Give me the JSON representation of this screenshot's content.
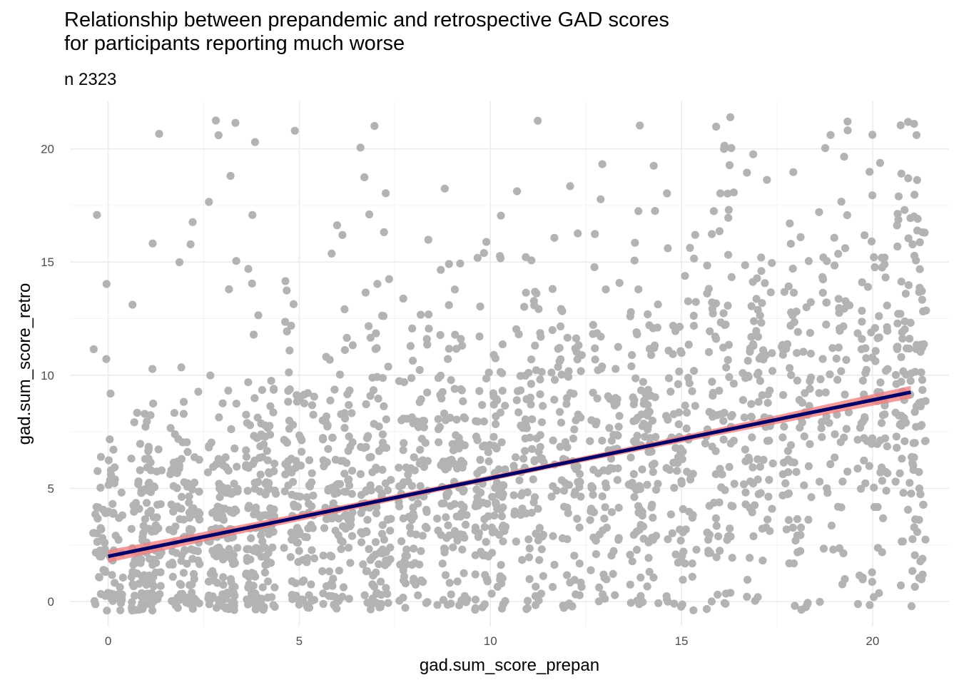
{
  "chart_data": {
    "type": "scatter",
    "title": "Relationship between prepandemic and retrospective GAD scores\nfor participants reporting much worse",
    "subtitle": "n 2323",
    "xlabel": "gad.sum_score_prepan",
    "ylabel": "gad.sum_score_retro",
    "xlim": [
      -1.0,
      22.0
    ],
    "ylim": [
      -1.1,
      22.1
    ],
    "x_ticks": [
      0,
      5,
      10,
      15,
      20
    ],
    "y_ticks": [
      0,
      5,
      10,
      15,
      20
    ],
    "grid": true,
    "legend": "none",
    "n": 2323,
    "jitter": 0.4,
    "point_color": "#B3B3B3",
    "fit_line": {
      "method": "linear",
      "x": [
        0,
        21
      ],
      "y": [
        2.0,
        9.25
      ],
      "color": "#000066",
      "ribbon_color": "#F08080",
      "ribbon_halfwidth_ends": 0.28,
      "ribbon_halfwidth_mid": 0.12
    },
    "points_summary": "Points cover integer scores 0–21 on both axes with jitter; density highest at low retro scores (0–8); retro scores rise with prepan scores."
  }
}
